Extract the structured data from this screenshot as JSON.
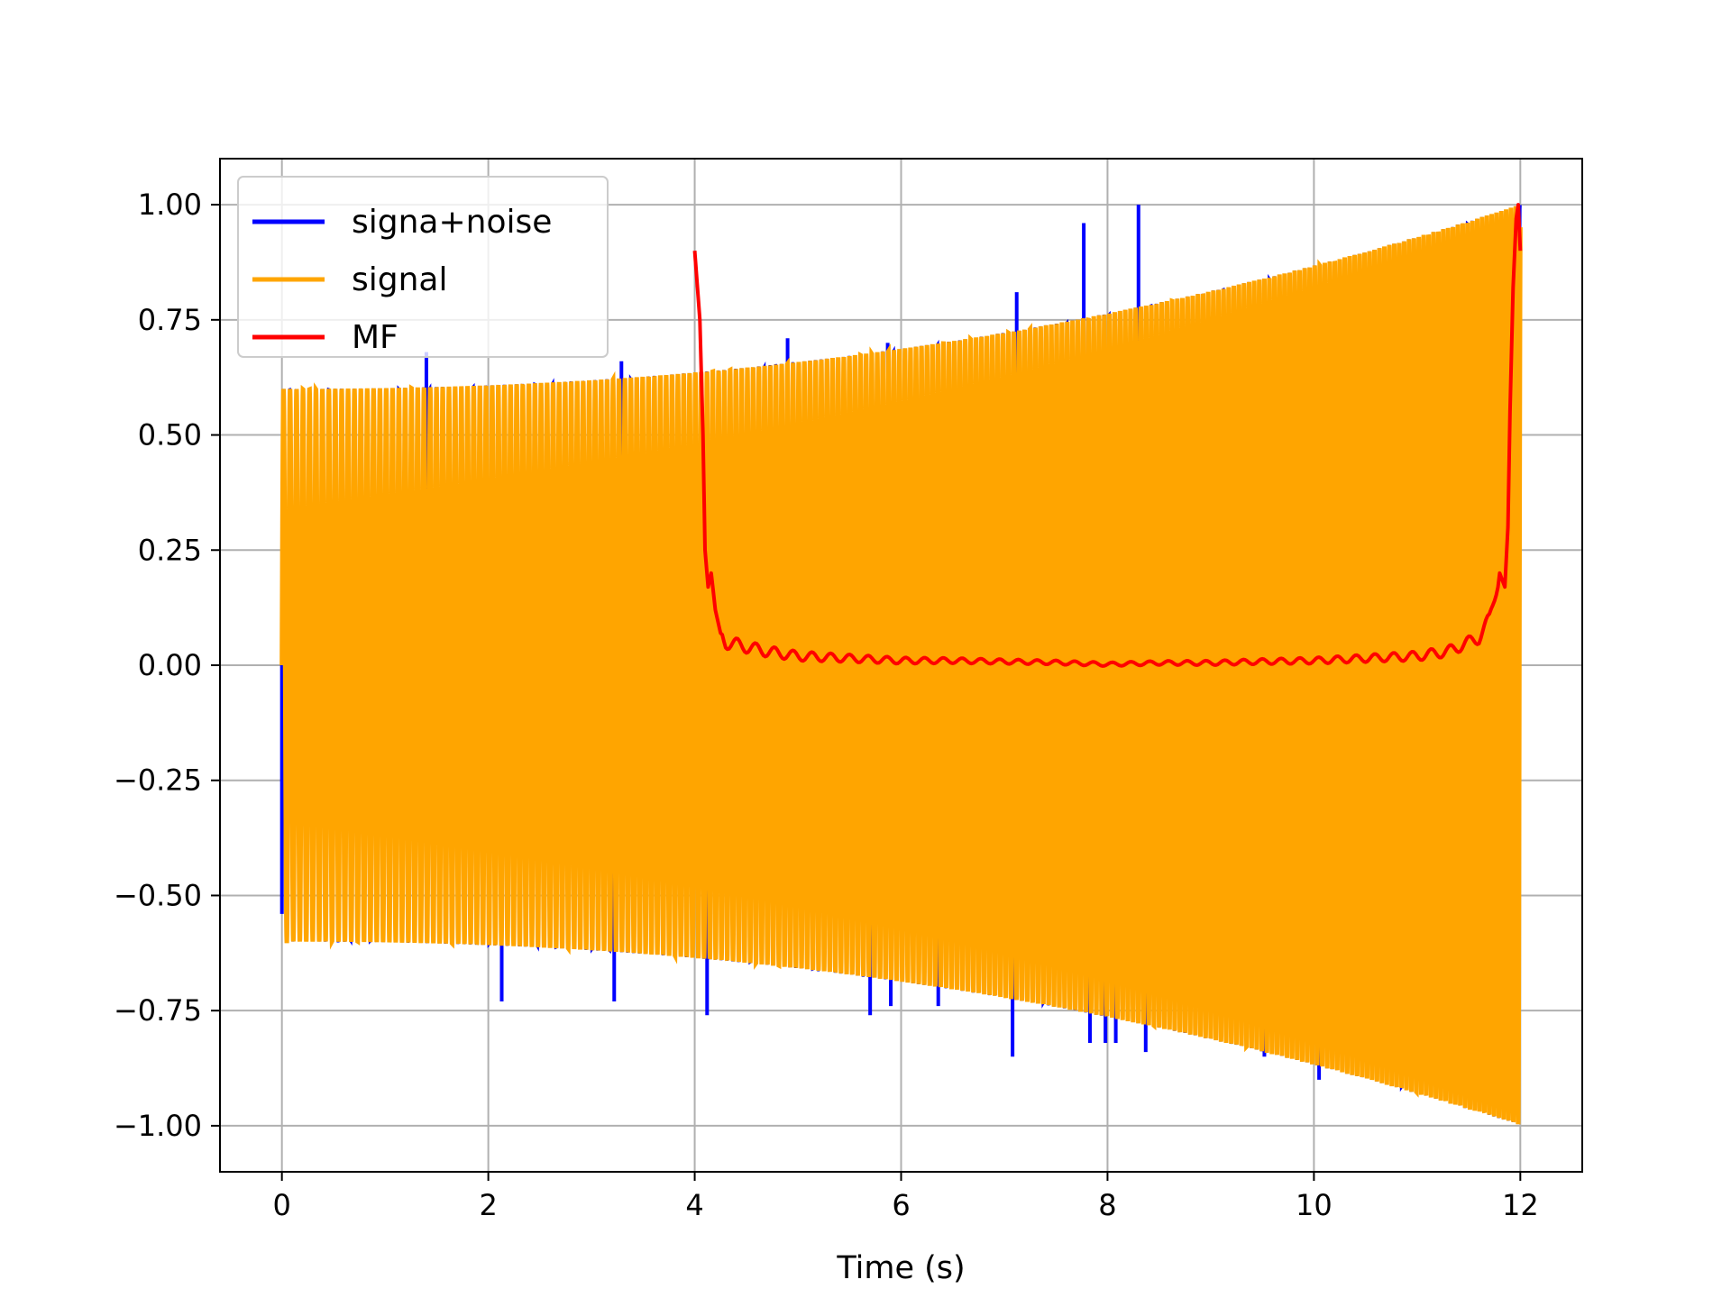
{
  "chart_data": {
    "type": "line",
    "title": "",
    "xlabel": "Time (s)",
    "ylabel": "",
    "xlim": [
      -0.6,
      12.6
    ],
    "ylim": [
      -1.1,
      1.1
    ],
    "grid": true,
    "legend_position": "top-left",
    "x_ticks": [
      0,
      2,
      4,
      6,
      8,
      10,
      12
    ],
    "x_tick_labels": [
      "0",
      "2",
      "4",
      "6",
      "8",
      "10",
      "12"
    ],
    "y_ticks": [
      1.0,
      0.75,
      0.5,
      0.25,
      0.0,
      -0.25,
      -0.5,
      -0.75,
      -1.0
    ],
    "y_tick_labels": [
      "1.00",
      "0.75",
      "0.50",
      "0.25",
      "0.00",
      "−0.25",
      "−0.50",
      "−0.75",
      "−1.00"
    ],
    "series": [
      {
        "name": "signa+noise",
        "color": "#0000ff",
        "envelope_start": 0.6,
        "envelope_end": 1.0,
        "noise_spikes": [
          {
            "x": 0.0,
            "y": -0.54
          },
          {
            "x": 1.4,
            "y": 0.68
          },
          {
            "x": 2.13,
            "y": -0.73
          },
          {
            "x": 3.22,
            "y": -0.73
          },
          {
            "x": 3.29,
            "y": 0.66
          },
          {
            "x": 4.12,
            "y": -0.76
          },
          {
            "x": 4.9,
            "y": 0.71
          },
          {
            "x": 5.7,
            "y": -0.76
          },
          {
            "x": 5.87,
            "y": 0.7
          },
          {
            "x": 5.9,
            "y": -0.74
          },
          {
            "x": 6.36,
            "y": -0.74
          },
          {
            "x": 7.08,
            "y": -0.85
          },
          {
            "x": 7.12,
            "y": 0.81
          },
          {
            "x": 7.77,
            "y": 0.96
          },
          {
            "x": 7.83,
            "y": -0.82
          },
          {
            "x": 7.98,
            "y": -0.82
          },
          {
            "x": 8.08,
            "y": -0.82
          },
          {
            "x": 8.3,
            "y": 1.0
          },
          {
            "x": 8.37,
            "y": -0.84
          },
          {
            "x": 9.52,
            "y": -0.85
          },
          {
            "x": 10.05,
            "y": -0.9
          }
        ]
      },
      {
        "name": "signal",
        "color": "#ffa500",
        "x_start": 0.0,
        "x_end": 12.0,
        "envelope_start": 0.6,
        "envelope_end": 1.0
      },
      {
        "name": "MF",
        "color": "#ff0000",
        "x": [
          4.0,
          4.05,
          4.08,
          4.1,
          4.13,
          4.16,
          4.2,
          4.25,
          4.3,
          4.4,
          4.5,
          4.7,
          5.0,
          5.5,
          6.0,
          6.5,
          7.0,
          7.5,
          8.0,
          8.5,
          9.0,
          9.5,
          10.0,
          10.5,
          11.0,
          11.3,
          11.5,
          11.6,
          11.7,
          11.75,
          11.8,
          11.85,
          11.88,
          11.9,
          11.93,
          11.96,
          11.98,
          12.0
        ],
        "values": [
          0.9,
          0.75,
          0.5,
          0.25,
          0.17,
          0.2,
          0.12,
          0.07,
          0.05,
          0.045,
          0.04,
          0.03,
          0.02,
          0.015,
          0.01,
          0.01,
          0.008,
          0.006,
          0.002,
          0.005,
          0.005,
          0.008,
          0.01,
          0.015,
          0.02,
          0.03,
          0.05,
          0.06,
          0.1,
          0.15,
          0.2,
          0.17,
          0.3,
          0.55,
          0.82,
          0.97,
          1.0,
          0.9
        ]
      }
    ]
  }
}
